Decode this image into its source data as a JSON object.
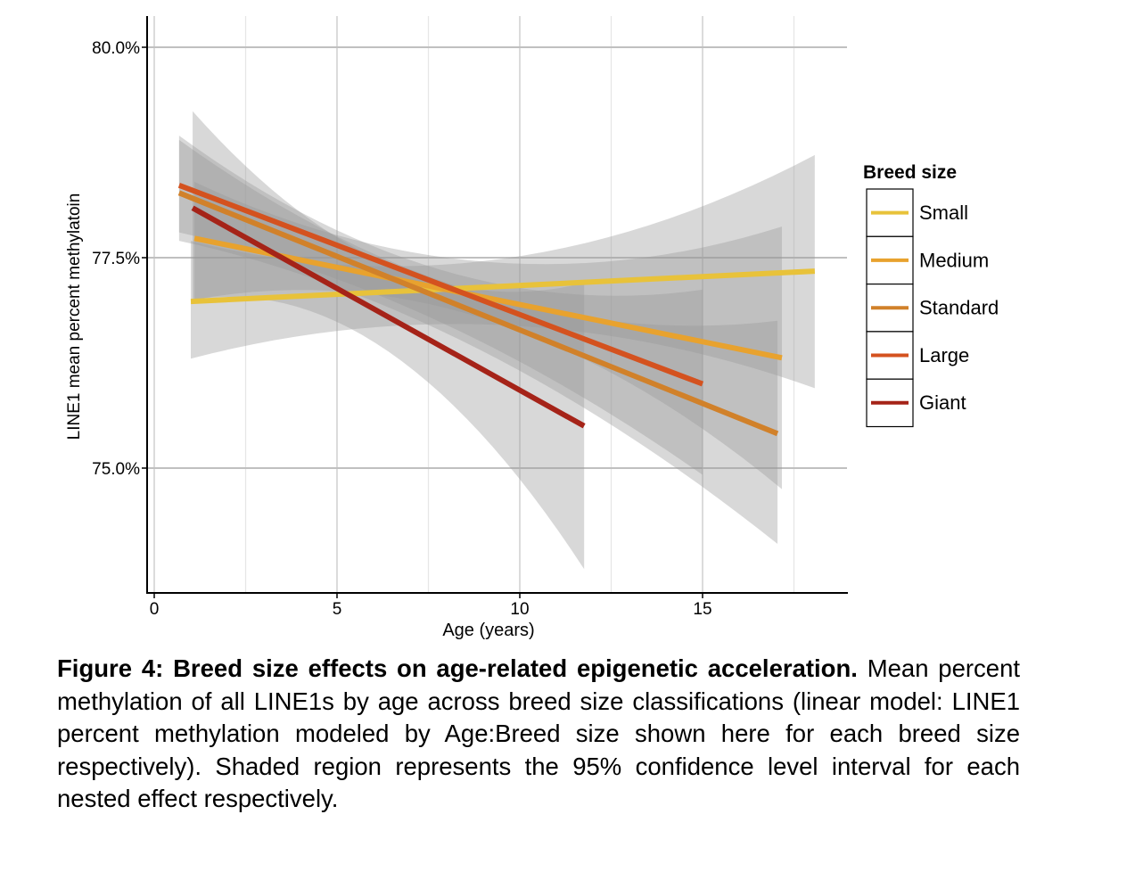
{
  "chart_data": {
    "type": "line",
    "xlabel": "Age (years)",
    "ylabel": "LINE1 mean percent methylatoin",
    "xlim": [
      -0.2,
      19
    ],
    "ylim": [
      73.3,
      80.4
    ],
    "xticks": [
      0,
      5,
      10,
      15
    ],
    "xtick_labels": [
      "0",
      "5",
      "10",
      "15"
    ],
    "yticks": [
      75,
      77.5,
      80
    ],
    "ytick_labels": [
      "75.0%",
      "77.5%",
      "80.0%"
    ],
    "grid": true,
    "legend": {
      "title": "Breed size",
      "placement": "right"
    },
    "series": [
      {
        "name": "Small",
        "color": "#E8C23A",
        "x": [
          1,
          18.07
        ],
        "y": [
          76.98,
          77.34
        ],
        "ci": [
          [
            1,
            76.3,
            77.7
          ],
          [
            7,
            76.7,
            77.4
          ],
          [
            18.07,
            75.95,
            78.72
          ]
        ]
      },
      {
        "name": "Medium",
        "color": "#E8A22E",
        "x": [
          1.1,
          17.17
        ],
        "y": [
          77.73,
          76.31
        ],
        "ci": [
          [
            1.1,
            77.0,
            78.4
          ],
          [
            8,
            76.9,
            77.5
          ],
          [
            17.17,
            74.75,
            77.87
          ]
        ]
      },
      {
        "name": "Standard",
        "color": "#D1812A",
        "x": [
          0.68,
          17.05
        ],
        "y": [
          78.27,
          75.41
        ],
        "ci": [
          [
            0.68,
            77.7,
            78.9
          ],
          [
            8,
            76.6,
            77.2
          ],
          [
            17.05,
            74.1,
            76.75
          ]
        ]
      },
      {
        "name": "Large",
        "color": "#D4521F",
        "x": [
          0.68,
          15
        ],
        "y": [
          78.36,
          76.0
        ],
        "ci": [
          [
            0.68,
            77.8,
            78.95
          ],
          [
            7.5,
            76.8,
            77.4
          ],
          [
            15,
            74.92,
            77.12
          ]
        ]
      },
      {
        "name": "Giant",
        "color": "#A52318",
        "x": [
          1.05,
          11.76
        ],
        "y": [
          78.09,
          75.5
        ],
        "ci": [
          [
            1.05,
            77.0,
            79.24
          ],
          [
            6,
            76.5,
            77.5
          ],
          [
            11.76,
            73.8,
            77.2
          ]
        ]
      }
    ]
  },
  "caption": {
    "title": "Figure 4: Breed size effects on age-related epigenetic acceleration.",
    "body": "Mean percent methylation of all LINE1s by age across breed size classifications (linear model: LINE1 percent methylation modeled by Age:Breed size shown here for each breed size respectively). Shaded region represents the 95% confidence level interval for each nested effect respectively."
  }
}
